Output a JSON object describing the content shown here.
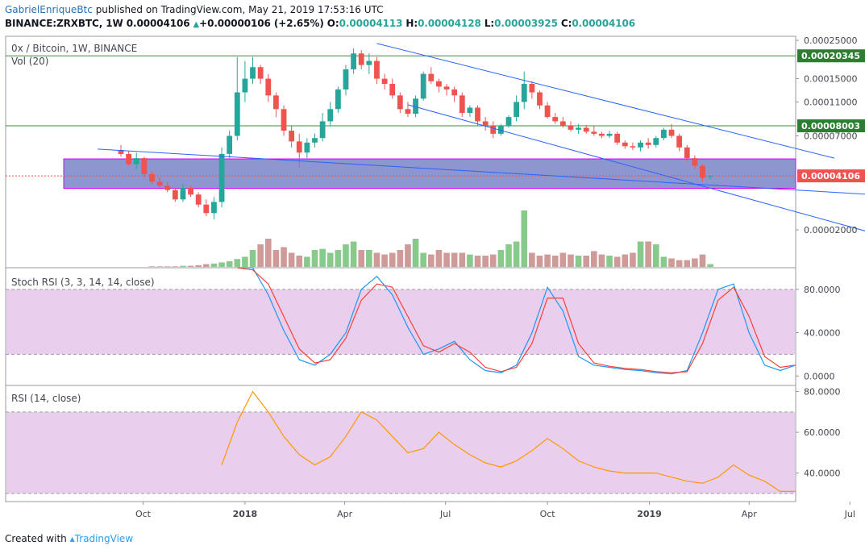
{
  "header": {
    "user": "GabrielEnriqueBtc",
    "published": "published on TradingView.com, May 21, 2019 17:53:16 UTC",
    "symbol": "BINANCE:ZRXBTC, 1W",
    "price": "0.00004106",
    "change_arrow": "▲",
    "change": "+0.00000106 (+2.65%)",
    "o_label": "O:",
    "o": "0.00004113",
    "h_label": "H:",
    "h": "0.00004128",
    "l_label": "L:",
    "l": "0.00003925",
    "c_label": "C:",
    "c": "0.00004106"
  },
  "pane_labels": {
    "main": "0x / Bitcoin, 1W, BINANCE",
    "vol": "Vol (20)",
    "stoch": "Stoch RSI (3, 3, 14, 14, close)",
    "rsi": "RSI (14, close)"
  },
  "footer": {
    "created_with": "Created with",
    "brand": "TradingView"
  },
  "colors": {
    "up": "#26a69a",
    "down": "#ef5350",
    "trend": "#2962ff",
    "level": "#388e3c",
    "zone": "#2f3fa8",
    "k_line": "#2196f3",
    "d_line": "#f44336",
    "rsi_line": "#ff9800",
    "band": "#e1bee7"
  },
  "chart_data": [
    {
      "type": "candlestick",
      "title": "0x / Bitcoin, 1W, BINANCE",
      "x_ticks": [
        "Oct",
        "2018",
        "Apr",
        "Jul",
        "Oct",
        "2019",
        "Apr",
        "Jul"
      ],
      "y_scale": "log",
      "y_ticks": [
        "0.00025000",
        "0.00015000",
        "0.00011000",
        "0.00007000",
        "0.00002000"
      ],
      "levels": [
        {
          "label": "0.00020345",
          "value": 0.00020345
        },
        {
          "label": "0.00008003",
          "value": 8.003e-05
        }
      ],
      "last_price": {
        "label": "0.00004106",
        "value": 4.106e-05
      },
      "zone": [
        3.48e-05,
        5.15e-05
      ],
      "trend_lines": [
        {
          "from": [
            "2017-08-21",
            5.87e-05
          ],
          "to": [
            "2019-07-29",
            3.18e-05
          ]
        },
        {
          "from": [
            "2018-04-30",
            0.00024
          ],
          "to": [
            "2019-06-17",
            5.2e-05
          ]
        },
        {
          "from": [
            "2018-05-28",
            0.000106
          ],
          "to": [
            "2019-07-29",
            1.86e-05
          ]
        }
      ],
      "weeks_start": "2017-09-11",
      "ohlc": [
        [
          5.8e-05,
          6.2e-05,
          5.3e-05,
          5.5e-05
        ],
        [
          5.5e-05,
          5.7e-05,
          4.7e-05,
          4.8e-05
        ],
        [
          4.8e-05,
          5.6e-05,
          4.5e-05,
          5.2e-05
        ],
        [
          5.2e-05,
          5.3e-05,
          4e-05,
          4.2e-05
        ],
        [
          4.2e-05,
          4.4e-05,
          3.7e-05,
          3.8e-05
        ],
        [
          3.8e-05,
          4e-05,
          3.5e-05,
          3.6e-05
        ],
        [
          3.6e-05,
          3.8e-05,
          3.3e-05,
          3.4e-05
        ],
        [
          3.4e-05,
          3.5e-05,
          2.9e-05,
          3e-05
        ],
        [
          3e-05,
          3.7e-05,
          2.9e-05,
          3.5e-05
        ],
        [
          3.5e-05,
          3.6e-05,
          3.1e-05,
          3.2e-05
        ],
        [
          3.2e-05,
          3.3e-05,
          2.7e-05,
          2.8e-05
        ],
        [
          2.8e-05,
          3e-05,
          2.4e-05,
          2.5e-05
        ],
        [
          2.5e-05,
          3.1e-05,
          2.3e-05,
          2.9e-05
        ],
        [
          2.9e-05,
          6e-05,
          2.7e-05,
          5.5e-05
        ],
        [
          5.5e-05,
          7.5e-05,
          5.2e-05,
          7e-05
        ],
        [
          7e-05,
          0.0002,
          6.6e-05,
          0.000125
        ],
        [
          0.000125,
          0.00019,
          0.00011,
          0.00015
        ],
        [
          0.00015,
          0.0002,
          0.00014,
          0.000175
        ],
        [
          0.000175,
          0.00018,
          0.00014,
          0.00015
        ],
        [
          0.00015,
          0.00016,
          0.00011,
          0.00012
        ],
        [
          0.00012,
          0.000125,
          9e-05,
          0.0001
        ],
        [
          0.0001,
          0.000105,
          7e-05,
          7.5e-05
        ],
        [
          7.5e-05,
          8e-05,
          6e-05,
          6.5e-05
        ],
        [
          6.5e-05,
          7.2e-05,
          4.6e-05,
          5.6e-05
        ],
        [
          5.6e-05,
          6.8e-05,
          5.2e-05,
          6.4e-05
        ],
        [
          6.4e-05,
          7.2e-05,
          6e-05,
          6.8e-05
        ],
        [
          6.8e-05,
          9.5e-05,
          6.5e-05,
          8.5e-05
        ],
        [
          8.5e-05,
          0.00011,
          8e-05,
          0.0001
        ],
        [
          0.0001,
          0.000135,
          9.5e-05,
          0.00013
        ],
        [
          0.00013,
          0.00018,
          0.00012,
          0.00017
        ],
        [
          0.00017,
          0.000225,
          0.00016,
          0.00021
        ],
        [
          0.00021,
          0.00022,
          0.00017,
          0.00018
        ],
        [
          0.00018,
          0.00021,
          0.00016,
          0.00019
        ],
        [
          0.00019,
          0.0002,
          0.00014,
          0.00015
        ],
        [
          0.00015,
          0.00016,
          0.00013,
          0.00014
        ],
        [
          0.00014,
          0.00015,
          0.000115,
          0.00012
        ],
        [
          0.00012,
          0.000125,
          9.5e-05,
          0.0001
        ],
        [
          0.0001,
          0.00011,
          9e-05,
          9.4e-05
        ],
        [
          9.4e-05,
          0.00012,
          9e-05,
          0.000115
        ],
        [
          0.000115,
          0.000165,
          0.000112,
          0.00016
        ],
        [
          0.00016,
          0.000175,
          0.00014,
          0.000145
        ],
        [
          0.000145,
          0.00015,
          0.000125,
          0.000135
        ],
        [
          0.000135,
          0.00014,
          0.00012,
          0.00013
        ],
        [
          0.00013,
          0.000135,
          0.00011,
          0.00012
        ],
        [
          0.00012,
          0.000125,
          9e-05,
          9.5e-05
        ],
        [
          9.5e-05,
          0.000105,
          9e-05,
          0.000102
        ],
        [
          0.000102,
          0.000105,
          8e-05,
          8.5e-05
        ],
        [
          8.5e-05,
          9e-05,
          7.5e-05,
          8e-05
        ],
        [
          8e-05,
          8.5e-05,
          6.8e-05,
          7.2e-05
        ],
        [
          7.2e-05,
          8.2e-05,
          7e-05,
          8e-05
        ],
        [
          8e-05,
          9.2e-05,
          7.8e-05,
          9e-05
        ],
        [
          9e-05,
          0.00012,
          8.5e-05,
          0.00011
        ],
        [
          0.00011,
          0.000165,
          0.0001,
          0.00014
        ],
        [
          0.00014,
          0.000145,
          0.000115,
          0.000125
        ],
        [
          0.000125,
          0.000128,
          0.0001,
          0.000105
        ],
        [
          0.000105,
          0.00011,
          8.8e-05,
          9e-05
        ],
        [
          9e-05,
          9.5e-05,
          8.2e-05,
          8.5e-05
        ],
        [
          8.5e-05,
          9e-05,
          7.8e-05,
          8e-05
        ],
        [
          8e-05,
          8.5e-05,
          7.4e-05,
          7.6e-05
        ],
        [
          7.6e-05,
          8.2e-05,
          7.2e-05,
          7.8e-05
        ],
        [
          7.8e-05,
          8.1e-05,
          7.2e-05,
          7.4e-05
        ],
        [
          7.4e-05,
          8e-05,
          7e-05,
          7.2e-05
        ],
        [
          7.2e-05,
          7.4e-05,
          6.8e-05,
          7e-05
        ],
        [
          7e-05,
          7.5e-05,
          6.8e-05,
          7.2e-05
        ],
        [
          7.2e-05,
          7.4e-05,
          6.2e-05,
          6.4e-05
        ],
        [
          6.4e-05,
          6.6e-05,
          5.9e-05,
          6.1e-05
        ],
        [
          6.1e-05,
          6.4e-05,
          5.8e-05,
          6e-05
        ],
        [
          6e-05,
          6.6e-05,
          5.7e-05,
          6.4e-05
        ],
        [
          6.4e-05,
          6.8e-05,
          5.9e-05,
          6.2e-05
        ],
        [
          6.2e-05,
          7e-05,
          6e-05,
          6.8e-05
        ],
        [
          6.8e-05,
          7.8e-05,
          6.6e-05,
          7.6e-05
        ],
        [
          7.6e-05,
          8.2e-05,
          6.8e-05,
          7e-05
        ],
        [
          7e-05,
          7.2e-05,
          5.7e-05,
          6e-05
        ],
        [
          6e-05,
          6.2e-05,
          5e-05,
          5.2e-05
        ],
        [
          5.2e-05,
          5.4e-05,
          4.5e-05,
          4.7e-05
        ],
        [
          4.7e-05,
          4.8e-05,
          3.8e-05,
          4e-05
        ],
        [
          4.1e-05,
          4.1e-05,
          3.9e-05,
          4.1e-05
        ]
      ],
      "volume": [
        0,
        0,
        0,
        0,
        1,
        1,
        1,
        1,
        2,
        2,
        3,
        5,
        6,
        8,
        10,
        14,
        18,
        30,
        40,
        50,
        30,
        35,
        25,
        20,
        18,
        30,
        32,
        25,
        30,
        40,
        45,
        30,
        30,
        25,
        22,
        25,
        30,
        40,
        50,
        25,
        22,
        30,
        25,
        25,
        25,
        22,
        20,
        20,
        22,
        30,
        40,
        45,
        100,
        25,
        20,
        22,
        20,
        25,
        22,
        20,
        20,
        28,
        22,
        20,
        18,
        22,
        25,
        45,
        45,
        40,
        18,
        15,
        12,
        12,
        15,
        22,
        5
      ],
      "volume_up": [
        false,
        false,
        false,
        false,
        false,
        false,
        false,
        false,
        true,
        false,
        false,
        false,
        true,
        true,
        true,
        true,
        true,
        true,
        false,
        false,
        false,
        false,
        false,
        false,
        true,
        true,
        true,
        true,
        true,
        true,
        true,
        false,
        true,
        false,
        false,
        false,
        false,
        false,
        true,
        true,
        false,
        false,
        false,
        false,
        false,
        true,
        false,
        false,
        false,
        true,
        true,
        true,
        true,
        false,
        false,
        false,
        false,
        false,
        false,
        true,
        false,
        false,
        false,
        true,
        false,
        false,
        false,
        true,
        false,
        true,
        true,
        false,
        false,
        false,
        false,
        false,
        true
      ]
    },
    {
      "type": "line",
      "title": "Stoch RSI (3, 3, 14, 14, close)",
      "y_ticks": [
        "80.0000",
        "40.0000",
        "0.0000"
      ],
      "ylim": [
        -8,
        100
      ],
      "band": [
        20,
        80
      ],
      "x": [
        "2017-12-25",
        "2018-01-08",
        "2018-01-22",
        "2018-02-05",
        "2018-02-19",
        "2018-03-05",
        "2018-03-19",
        "2018-04-02",
        "2018-04-16",
        "2018-04-30",
        "2018-05-14",
        "2018-05-28",
        "2018-06-11",
        "2018-06-25",
        "2018-07-09",
        "2018-07-23",
        "2018-08-06",
        "2018-08-20",
        "2018-09-03",
        "2018-09-17",
        "2018-10-01",
        "2018-10-15",
        "2018-10-29",
        "2018-11-12",
        "2018-11-26",
        "2018-12-10",
        "2018-12-24",
        "2019-01-07",
        "2019-01-21",
        "2019-02-04",
        "2019-02-18",
        "2019-03-04",
        "2019-03-18",
        "2019-04-01",
        "2019-04-15",
        "2019-04-29",
        "2019-05-13"
      ],
      "series": [
        {
          "values": [
            100,
            100,
            75,
            42,
            15,
            10,
            20,
            40,
            80,
            92,
            75,
            45,
            20,
            25,
            32,
            15,
            5,
            3,
            10,
            40,
            82,
            60,
            18,
            10,
            8,
            6,
            5,
            3,
            2,
            5,
            40,
            80,
            85,
            40,
            10,
            5,
            10
          ]
        },
        {
          "values": [
            100,
            98,
            85,
            55,
            25,
            12,
            15,
            35,
            70,
            85,
            82,
            55,
            28,
            22,
            30,
            22,
            8,
            4,
            8,
            30,
            72,
            72,
            30,
            12,
            9,
            7,
            6,
            4,
            3,
            4,
            30,
            70,
            82,
            55,
            18,
            8,
            10
          ]
        }
      ]
    },
    {
      "type": "line",
      "title": "RSI (14, close)",
      "y_ticks": [
        "80.0000",
        "60.0000",
        "40.0000"
      ],
      "ylim": [
        26,
        83
      ],
      "band": [
        30,
        70
      ],
      "x": [
        "2017-12-11",
        "2017-12-25",
        "2018-01-08",
        "2018-01-22",
        "2018-02-05",
        "2018-02-19",
        "2018-03-05",
        "2018-03-19",
        "2018-04-02",
        "2018-04-16",
        "2018-04-30",
        "2018-05-14",
        "2018-05-28",
        "2018-06-11",
        "2018-06-25",
        "2018-07-09",
        "2018-07-23",
        "2018-08-06",
        "2018-08-20",
        "2018-09-03",
        "2018-09-17",
        "2018-10-01",
        "2018-10-15",
        "2018-10-29",
        "2018-11-12",
        "2018-11-26",
        "2018-12-10",
        "2018-12-24",
        "2019-01-07",
        "2019-01-21",
        "2019-02-04",
        "2019-02-18",
        "2019-03-04",
        "2019-03-18",
        "2019-04-01",
        "2019-04-15",
        "2019-04-29",
        "2019-05-13"
      ],
      "series": [
        {
          "values": [
            44,
            65,
            80,
            70,
            58,
            49,
            44,
            48,
            58,
            70,
            66,
            58,
            50,
            52,
            60,
            54,
            49,
            45,
            43,
            46,
            51,
            57,
            52,
            46,
            43,
            41,
            40,
            40,
            40,
            38,
            36,
            35,
            38,
            44,
            39,
            36,
            31,
            31
          ]
        }
      ]
    }
  ]
}
